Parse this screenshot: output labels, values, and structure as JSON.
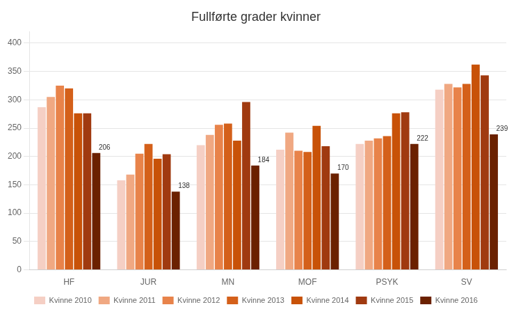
{
  "chart_data": {
    "type": "bar",
    "title": "Fullførte grader kvinner",
    "categories": [
      "HF",
      "JUR",
      "MN",
      "MOF",
      "PSYK",
      "SV"
    ],
    "series": [
      {
        "name": "Kvinne 2010",
        "color": "#f5cfc4",
        "values": [
          287,
          158,
          220,
          212,
          222,
          318
        ]
      },
      {
        "name": "Kvinne 2011",
        "color": "#f0a882",
        "values": [
          305,
          168,
          238,
          242,
          228,
          328
        ]
      },
      {
        "name": "Kvinne 2012",
        "color": "#e8834a",
        "values": [
          325,
          205,
          256,
          210,
          232,
          322
        ]
      },
      {
        "name": "Kvinne 2013",
        "color": "#d4601a",
        "values": [
          320,
          222,
          258,
          208,
          236,
          328
        ]
      },
      {
        "name": "Kvinne 2014",
        "color": "#c85208",
        "values": [
          276,
          196,
          228,
          254,
          276,
          362
        ]
      },
      {
        "name": "Kvinne 2015",
        "color": "#a03a10",
        "values": [
          276,
          204,
          296,
          218,
          278,
          343
        ]
      },
      {
        "name": "Kvinne 2016",
        "color": "#6b2100",
        "values": [
          206,
          138,
          184,
          170,
          222,
          239
        ],
        "data_labels": true
      }
    ],
    "ylim": [
      0,
      420
    ],
    "yticks": [
      0,
      50,
      100,
      150,
      200,
      250,
      300,
      350,
      400
    ],
    "grid": true,
    "legend": "bottom"
  }
}
